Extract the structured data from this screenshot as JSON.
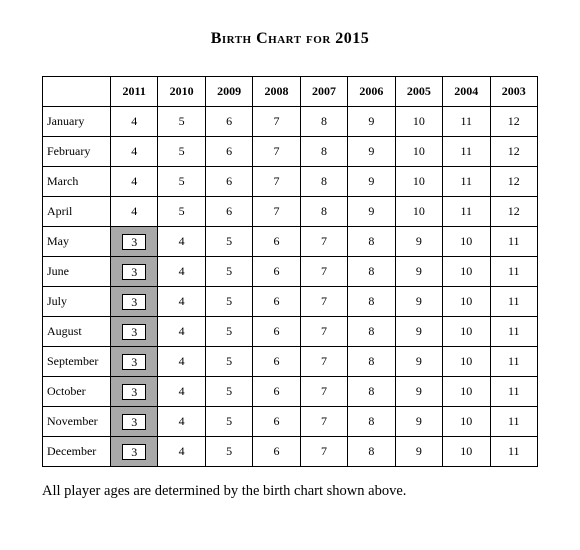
{
  "type": "table",
  "title": "Birth Chart for 2015",
  "caption": "All player ages are determined by the birth chart shown above.",
  "background_color": "#ffffff",
  "border_color": "#000000",
  "shaded_color": "#a9a9a9",
  "text_color": "#000000",
  "title_fontsize": 16,
  "cell_fontsize": 12,
  "caption_fontsize": 14.5,
  "columns": [
    "",
    "2011",
    "2010",
    "2009",
    "2008",
    "2007",
    "2006",
    "2005",
    "2004",
    "2003"
  ],
  "rows": [
    {
      "month": "January",
      "values": [
        4,
        5,
        6,
        7,
        8,
        9,
        10,
        11,
        12
      ],
      "shaded_col": null
    },
    {
      "month": "February",
      "values": [
        4,
        5,
        6,
        7,
        8,
        9,
        10,
        11,
        12
      ],
      "shaded_col": null
    },
    {
      "month": "March",
      "values": [
        4,
        5,
        6,
        7,
        8,
        9,
        10,
        11,
        12
      ],
      "shaded_col": null
    },
    {
      "month": "April",
      "values": [
        4,
        5,
        6,
        7,
        8,
        9,
        10,
        11,
        12
      ],
      "shaded_col": null
    },
    {
      "month": "May",
      "values": [
        3,
        4,
        5,
        6,
        7,
        8,
        9,
        10,
        11
      ],
      "shaded_col": 0
    },
    {
      "month": "June",
      "values": [
        3,
        4,
        5,
        6,
        7,
        8,
        9,
        10,
        11
      ],
      "shaded_col": 0
    },
    {
      "month": "July",
      "values": [
        3,
        4,
        5,
        6,
        7,
        8,
        9,
        10,
        11
      ],
      "shaded_col": 0
    },
    {
      "month": "August",
      "values": [
        3,
        4,
        5,
        6,
        7,
        8,
        9,
        10,
        11
      ],
      "shaded_col": 0
    },
    {
      "month": "September",
      "values": [
        3,
        4,
        5,
        6,
        7,
        8,
        9,
        10,
        11
      ],
      "shaded_col": 0
    },
    {
      "month": "October",
      "values": [
        3,
        4,
        5,
        6,
        7,
        8,
        9,
        10,
        11
      ],
      "shaded_col": 0
    },
    {
      "month": "November",
      "values": [
        3,
        4,
        5,
        6,
        7,
        8,
        9,
        10,
        11
      ],
      "shaded_col": 0
    },
    {
      "month": "December",
      "values": [
        3,
        4,
        5,
        6,
        7,
        8,
        9,
        10,
        11
      ],
      "shaded_col": 0
    }
  ]
}
